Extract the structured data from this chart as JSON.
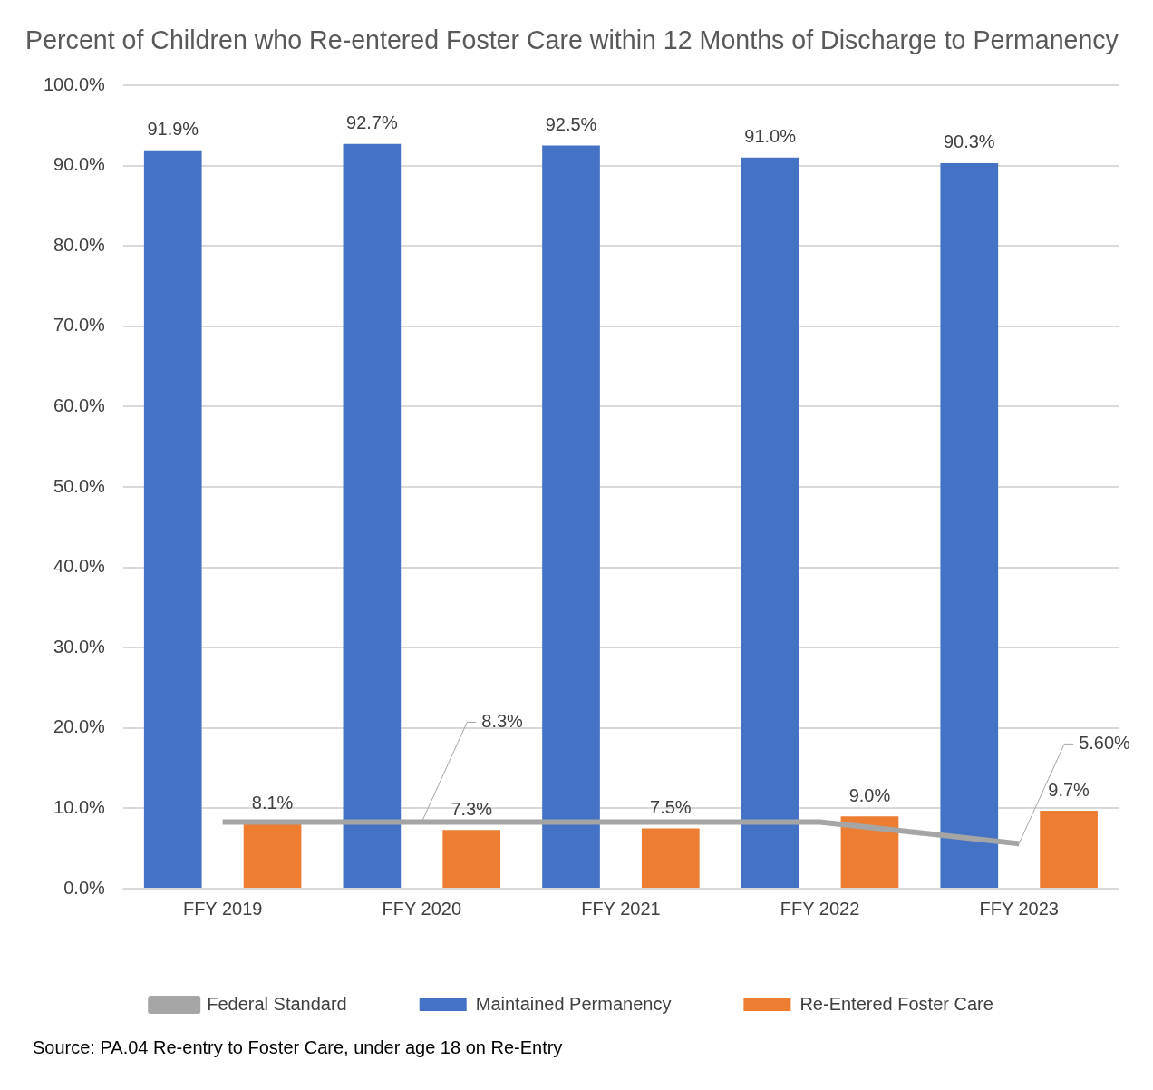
{
  "chart_data": {
    "type": "bar",
    "title": "Percent of Children who Re-entered Foster Care within 12 Months of Discharge to Permanency",
    "categories": [
      "FFY 2019",
      "FFY 2020",
      "FFY 2021",
      "FFY 2022",
      "FFY 2023"
    ],
    "series": [
      {
        "name": "Maintained Permanency",
        "color": "#4472c4",
        "values": [
          91.9,
          92.7,
          92.5,
          91.0,
          90.3
        ],
        "value_labels": [
          "91.9%",
          "92.7%",
          "92.5%",
          "91.0%",
          "90.3%"
        ]
      },
      {
        "name": "Re-Entered Foster Care",
        "color": "#ed7d31",
        "values": [
          8.1,
          7.3,
          7.5,
          9.0,
          9.7
        ],
        "value_labels": [
          "8.1%",
          "7.3%",
          "7.5%",
          "9.0%",
          "9.7%"
        ]
      },
      {
        "name": "Federal Standard",
        "type": "line",
        "color": "#a5a5a5",
        "values": [
          8.3,
          8.3,
          8.3,
          8.3,
          5.6
        ],
        "value_labels": [
          null,
          "8.3%",
          null,
          null,
          "5.60%"
        ]
      }
    ],
    "ylim": [
      0,
      100
    ],
    "yticks": [
      {
        "value": 0,
        "label": "0.0%"
      },
      {
        "value": 10,
        "label": "10.0%"
      },
      {
        "value": 20,
        "label": "20.0%"
      },
      {
        "value": 30,
        "label": "30.0%"
      },
      {
        "value": 40,
        "label": "40.0%"
      },
      {
        "value": 50,
        "label": "50.0%"
      },
      {
        "value": 60,
        "label": "60.0%"
      },
      {
        "value": 70,
        "label": "70.0%"
      },
      {
        "value": 80,
        "label": "80.0%"
      },
      {
        "value": 90,
        "label": "90.0%"
      },
      {
        "value": 100,
        "label": "100.0%"
      }
    ],
    "grid": "y",
    "legend": "bottom",
    "marker": "none",
    "annotations": [
      "Source: PA.04 Re-entry to Foster Care, under age 18 on Re-Entry"
    ]
  }
}
